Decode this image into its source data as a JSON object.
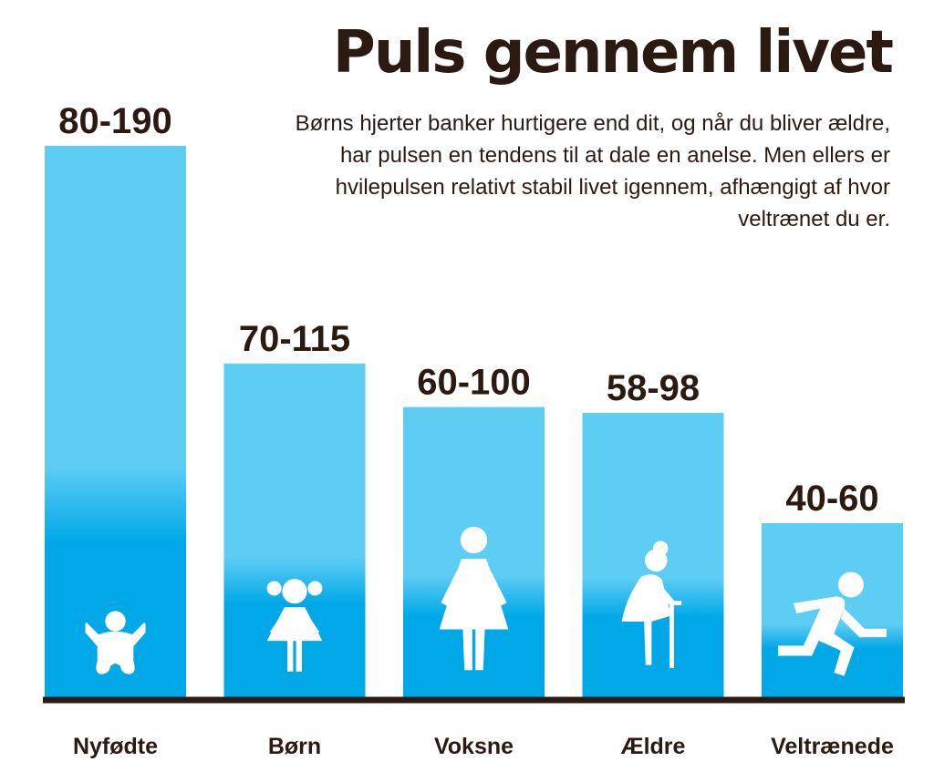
{
  "colors": {
    "bar_top": "#5ecdf4",
    "bar_bottom": "#00a8e8",
    "text": "#2b1a12",
    "axis": "#2b1a12",
    "icon": "#ffffff"
  },
  "chart_data": {
    "type": "bar",
    "title": "Puls gennem livet",
    "subtitle": "Børns hjerter banker hurtigere end dit, og når du bliver ældre, har pulsen en tendens til at dale en anelse. Men ellers er hvilepulsen relativt stabil livet igennem, afhængigt af hvor veltrænet du er.",
    "categories": [
      "Nyfødte",
      "Børn",
      "Voksne",
      "Ældre",
      "Veltrænede"
    ],
    "ranges": [
      [
        80,
        190
      ],
      [
        70,
        115
      ],
      [
        60,
        100
      ],
      [
        58,
        98
      ],
      [
        40,
        60
      ]
    ],
    "labels": [
      "80-190",
      "70-115",
      "60-100",
      "58-98",
      "40-60"
    ],
    "values": [
      190,
      115,
      100,
      98,
      60
    ],
    "ylim": [
      0,
      190
    ],
    "icons": [
      "baby-icon",
      "girl-icon",
      "woman-icon",
      "elderly-woman-icon",
      "runner-icon"
    ],
    "grid": false,
    "legend": "none"
  }
}
